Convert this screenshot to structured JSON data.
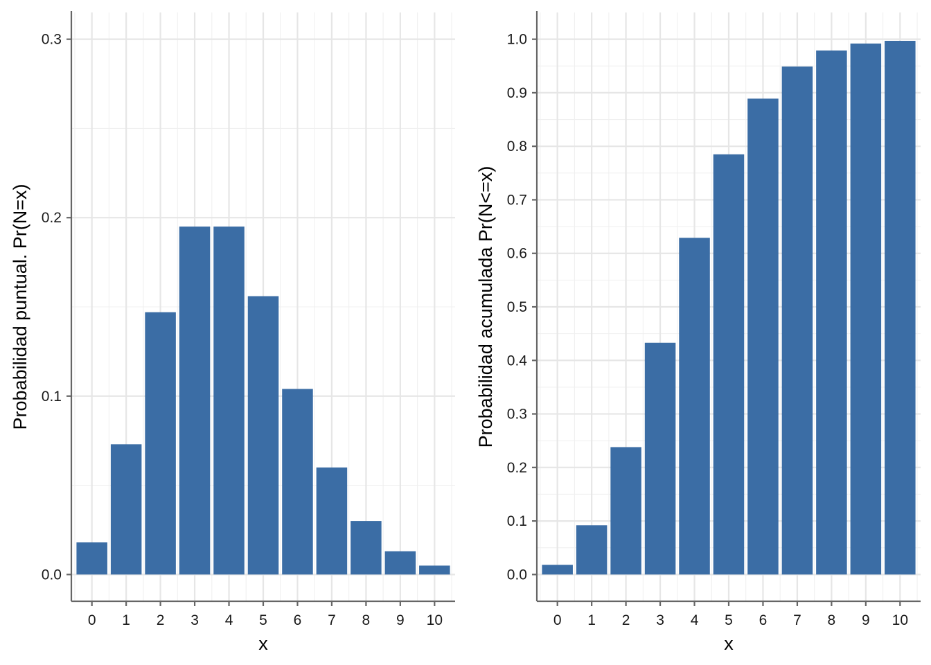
{
  "chart_data": [
    {
      "type": "bar",
      "categories": [
        "0",
        "1",
        "2",
        "3",
        "4",
        "5",
        "6",
        "7",
        "8",
        "9",
        "10"
      ],
      "values": [
        0.018,
        0.073,
        0.147,
        0.195,
        0.195,
        0.156,
        0.104,
        0.06,
        0.03,
        0.013,
        0.005
      ],
      "title": "",
      "xlabel": "x",
      "ylabel": "Probabilidad puntual. Pr(N=x)",
      "ylim": [
        -0.015,
        0.315
      ],
      "yticks": [
        0.0,
        0.1,
        0.2,
        0.3
      ],
      "ytick_labels": [
        "0.0",
        "0.1",
        "0.2",
        "0.3"
      ],
      "color": "#3B6DA5",
      "grid": true
    },
    {
      "type": "bar",
      "categories": [
        "0",
        "1",
        "2",
        "3",
        "4",
        "5",
        "6",
        "7",
        "8",
        "9",
        "10"
      ],
      "values": [
        0.018,
        0.092,
        0.238,
        0.433,
        0.629,
        0.785,
        0.889,
        0.949,
        0.979,
        0.992,
        0.997
      ],
      "title": "",
      "xlabel": "x",
      "ylabel": "Probabilidad acumulada Pr(N<=x)",
      "ylim": [
        -0.05,
        1.05
      ],
      "yticks": [
        0.0,
        0.1,
        0.2,
        0.3,
        0.4,
        0.5,
        0.6,
        0.7,
        0.8,
        0.9,
        1.0
      ],
      "ytick_labels": [
        "0.0",
        "0.1",
        "0.2",
        "0.3",
        "0.4",
        "0.5",
        "0.6",
        "0.7",
        "0.8",
        "0.9",
        "1.0"
      ],
      "color": "#3B6DA5",
      "grid": true
    }
  ]
}
